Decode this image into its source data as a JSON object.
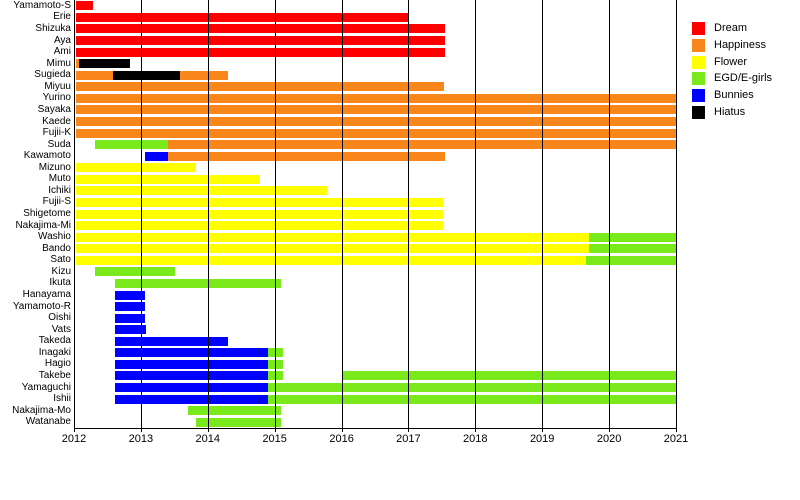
{
  "chart_data": {
    "type": "gantt",
    "title": "",
    "x_axis": {
      "min": 2012,
      "max": 2021,
      "ticks": [
        2012,
        2013,
        2014,
        2015,
        2016,
        2017,
        2018,
        2019,
        2020,
        2021
      ],
      "tick_labels": [
        "2012",
        "2013",
        "2014",
        "2015",
        "2016",
        "2017",
        "2018",
        "2019",
        "2020",
        "2021"
      ]
    },
    "grid": "vertical-solid-over-bars",
    "legend_position": "top-right",
    "legend": [
      {
        "label": "Dream",
        "color": "#FF0000"
      },
      {
        "label": "Happiness",
        "color": "#F8861B"
      },
      {
        "label": "Flower",
        "color": "#FFFF00"
      },
      {
        "label": "EGD/E-girls",
        "color": "#79E91C"
      },
      {
        "label": "Bunnies",
        "color": "#0000FF"
      },
      {
        "label": "Hiatus",
        "color": "#000000"
      }
    ],
    "group_colors": {
      "Dream": "#FF0000",
      "Happiness": "#F8861B",
      "Flower": "#FFFF00",
      "EGD/E-girls": "#79E91C",
      "Bunnies": "#0000FF",
      "Hiatus": "#000000"
    },
    "members": [
      {
        "name": "Yamamoto-S",
        "segments": [
          {
            "group": "Dream",
            "start": 2012.0,
            "end": 2012.28
          }
        ]
      },
      {
        "name": "Erie",
        "segments": [
          {
            "group": "Dream",
            "start": 2012.0,
            "end": 2017.0
          }
        ]
      },
      {
        "name": "Shizuka",
        "segments": [
          {
            "group": "Dream",
            "start": 2012.0,
            "end": 2017.55
          }
        ]
      },
      {
        "name": "Aya",
        "segments": [
          {
            "group": "Dream",
            "start": 2012.0,
            "end": 2017.55
          }
        ]
      },
      {
        "name": "Ami",
        "segments": [
          {
            "group": "Dream",
            "start": 2012.0,
            "end": 2017.55
          }
        ]
      },
      {
        "name": "Mimu",
        "segments": [
          {
            "group": "Happiness",
            "start": 2012.0,
            "end": 2012.08
          },
          {
            "group": "Hiatus",
            "start": 2012.08,
            "end": 2012.84
          }
        ]
      },
      {
        "name": "Sugieda",
        "segments": [
          {
            "group": "Happiness",
            "start": 2012.0,
            "end": 2012.58
          },
          {
            "group": "Hiatus",
            "start": 2012.58,
            "end": 2013.58
          },
          {
            "group": "Happiness",
            "start": 2013.58,
            "end": 2014.3
          }
        ]
      },
      {
        "name": "Miyuu",
        "segments": [
          {
            "group": "Happiness",
            "start": 2012.0,
            "end": 2017.53
          }
        ]
      },
      {
        "name": "Yurino",
        "segments": [
          {
            "group": "Happiness",
            "start": 2012.0,
            "end": 2021.0
          }
        ]
      },
      {
        "name": "Sayaka",
        "segments": [
          {
            "group": "Happiness",
            "start": 2012.0,
            "end": 2021.0
          }
        ]
      },
      {
        "name": "Kaede",
        "segments": [
          {
            "group": "Happiness",
            "start": 2012.0,
            "end": 2021.0
          }
        ]
      },
      {
        "name": "Fujii-K",
        "segments": [
          {
            "group": "Happiness",
            "start": 2012.0,
            "end": 2021.0
          }
        ]
      },
      {
        "name": "Suda",
        "segments": [
          {
            "group": "EGD/E-girls",
            "start": 2012.31,
            "end": 2013.4
          },
          {
            "group": "Happiness",
            "start": 2013.4,
            "end": 2021.0
          }
        ]
      },
      {
        "name": "Kawamoto",
        "segments": [
          {
            "group": "Bunnies",
            "start": 2013.06,
            "end": 2013.4
          },
          {
            "group": "Happiness",
            "start": 2013.4,
            "end": 2017.55
          }
        ]
      },
      {
        "name": "Mizuno",
        "segments": [
          {
            "group": "Flower",
            "start": 2012.0,
            "end": 2013.82
          }
        ]
      },
      {
        "name": "Muto",
        "segments": [
          {
            "group": "Flower",
            "start": 2012.0,
            "end": 2014.78
          }
        ]
      },
      {
        "name": "Ichiki",
        "segments": [
          {
            "group": "Flower",
            "start": 2012.0,
            "end": 2015.78
          }
        ]
      },
      {
        "name": "Fujii-S",
        "segments": [
          {
            "group": "Flower",
            "start": 2012.0,
            "end": 2017.52
          }
        ]
      },
      {
        "name": "Shigetome",
        "segments": [
          {
            "group": "Flower",
            "start": 2012.0,
            "end": 2017.52
          }
        ]
      },
      {
        "name": "Nakajima-Mi",
        "segments": [
          {
            "group": "Flower",
            "start": 2012.0,
            "end": 2017.52
          }
        ]
      },
      {
        "name": "Washio",
        "segments": [
          {
            "group": "Flower",
            "start": 2012.0,
            "end": 2019.7
          },
          {
            "group": "EGD/E-girls",
            "start": 2019.7,
            "end": 2021.0
          }
        ]
      },
      {
        "name": "Bando",
        "segments": [
          {
            "group": "Flower",
            "start": 2012.0,
            "end": 2019.7
          },
          {
            "group": "EGD/E-girls",
            "start": 2019.7,
            "end": 2021.0
          }
        ]
      },
      {
        "name": "Sato",
        "segments": [
          {
            "group": "Flower",
            "start": 2012.0,
            "end": 2019.65
          },
          {
            "group": "EGD/E-girls",
            "start": 2019.65,
            "end": 2021.0
          }
        ]
      },
      {
        "name": "Kizu",
        "segments": [
          {
            "group": "EGD/E-girls",
            "start": 2012.31,
            "end": 2013.51
          }
        ]
      },
      {
        "name": "Ikuta",
        "segments": [
          {
            "group": "EGD/E-girls",
            "start": 2012.61,
            "end": 2015.1
          }
        ]
      },
      {
        "name": "Hanayama",
        "segments": [
          {
            "group": "Bunnies",
            "start": 2012.61,
            "end": 2013.06
          }
        ]
      },
      {
        "name": "Yamamoto-R",
        "segments": [
          {
            "group": "Bunnies",
            "start": 2012.61,
            "end": 2013.06
          }
        ]
      },
      {
        "name": "Oishi",
        "segments": [
          {
            "group": "Bunnies",
            "start": 2012.61,
            "end": 2013.06
          }
        ]
      },
      {
        "name": "Vats",
        "segments": [
          {
            "group": "Bunnies",
            "start": 2012.61,
            "end": 2013.08
          }
        ]
      },
      {
        "name": "Takeda",
        "segments": [
          {
            "group": "Bunnies",
            "start": 2012.61,
            "end": 2014.3
          }
        ]
      },
      {
        "name": "Inagaki",
        "segments": [
          {
            "group": "Bunnies",
            "start": 2012.61,
            "end": 2014.9
          },
          {
            "group": "EGD/E-girls",
            "start": 2014.9,
            "end": 2015.12
          }
        ]
      },
      {
        "name": "Hagio",
        "segments": [
          {
            "group": "Bunnies",
            "start": 2012.61,
            "end": 2014.9
          },
          {
            "group": "EGD/E-girls",
            "start": 2014.9,
            "end": 2015.12
          }
        ]
      },
      {
        "name": "Takebe",
        "segments": [
          {
            "group": "Bunnies",
            "start": 2012.61,
            "end": 2014.9
          },
          {
            "group": "EGD/E-girls",
            "start": 2014.9,
            "end": 2015.12
          },
          {
            "group": "EGD/E-girls",
            "start": 2016.0,
            "end": 2021.0
          }
        ]
      },
      {
        "name": "Yamaguchi",
        "segments": [
          {
            "group": "Bunnies",
            "start": 2012.61,
            "end": 2014.9
          },
          {
            "group": "EGD/E-girls",
            "start": 2014.9,
            "end": 2021.0
          }
        ]
      },
      {
        "name": "Ishii",
        "segments": [
          {
            "group": "Bunnies",
            "start": 2012.61,
            "end": 2014.9
          },
          {
            "group": "EGD/E-girls",
            "start": 2014.9,
            "end": 2021.0
          }
        ]
      },
      {
        "name": "Nakajima-Mo",
        "segments": [
          {
            "group": "EGD/E-girls",
            "start": 2013.7,
            "end": 2015.1
          }
        ]
      },
      {
        "name": "Watanabe",
        "segments": [
          {
            "group": "EGD/E-girls",
            "start": 2013.82,
            "end": 2015.1
          }
        ]
      }
    ]
  }
}
